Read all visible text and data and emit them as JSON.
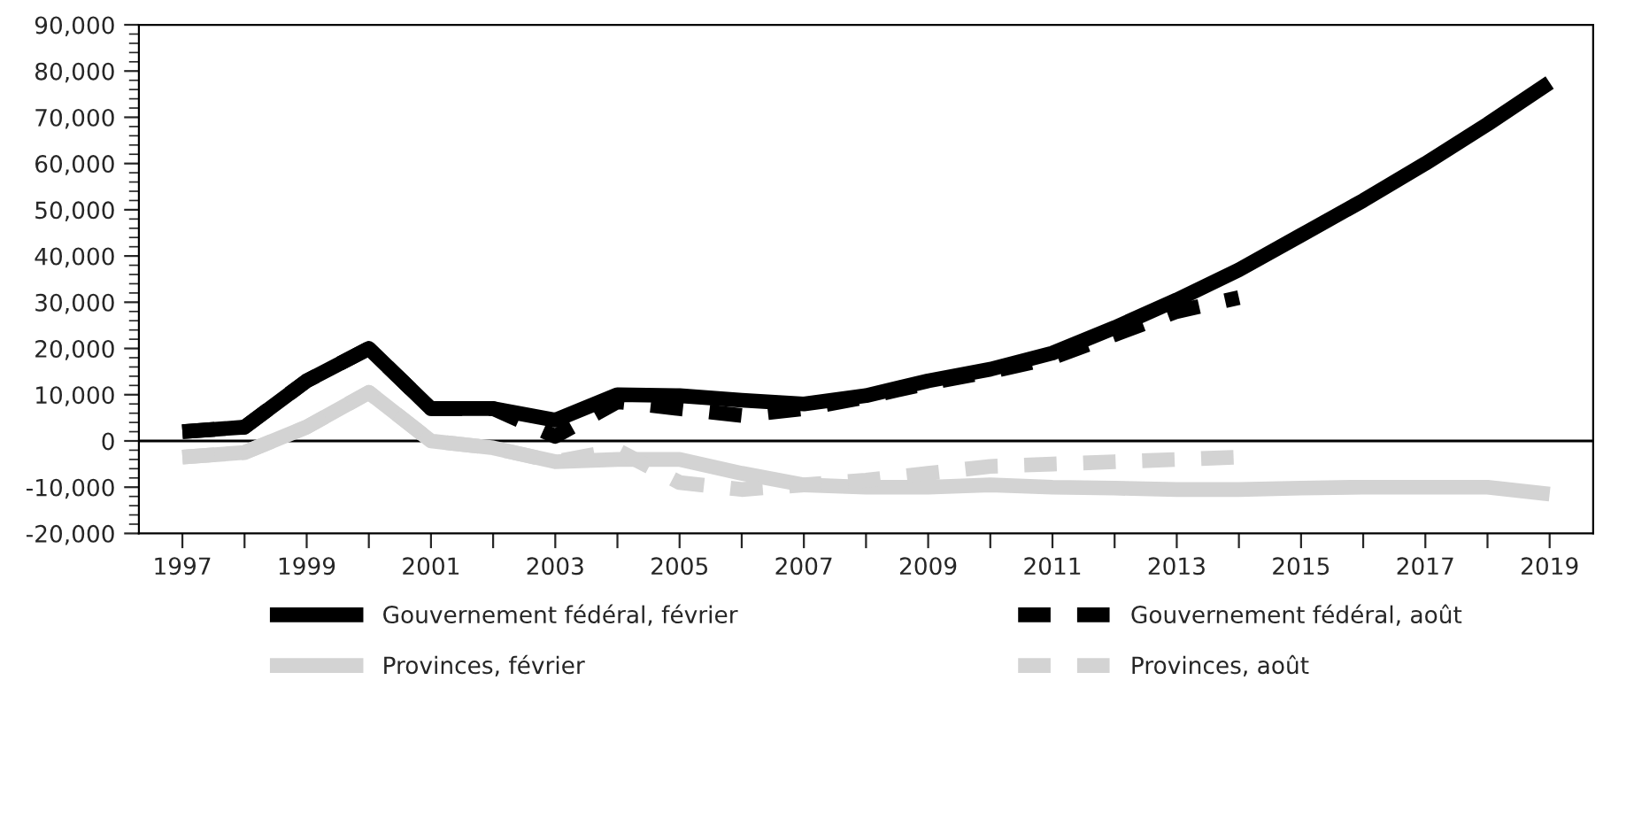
{
  "chart_data": {
    "type": "line",
    "x": [
      1997,
      1998,
      1999,
      2000,
      2001,
      2002,
      2003,
      2004,
      2005,
      2006,
      2007,
      2008,
      2009,
      2010,
      2011,
      2012,
      2013,
      2014,
      2015,
      2016,
      2017,
      2018,
      2019
    ],
    "series": [
      {
        "name": "Gouvernement fédéral, février",
        "color": "#000000",
        "line_style": "solid",
        "values": [
          2000,
          3000,
          13000,
          20000,
          7000,
          7000,
          4500,
          10000,
          9800,
          8800,
          8000,
          9800,
          13000,
          15500,
          19000,
          24500,
          30500,
          37000,
          44500,
          52000,
          60000,
          68500,
          77500
        ]
      },
      {
        "name": "Gouvernement fédéral, août",
        "color": "#000000",
        "line_style": "dashed",
        "values": [
          2000,
          3000,
          13000,
          20000,
          7000,
          7000,
          1000,
          8500,
          7000,
          5500,
          7000,
          9500,
          12500,
          15000,
          18000,
          23000,
          28000,
          31000,
          null,
          null,
          null,
          null,
          null
        ]
      },
      {
        "name": "Provinces, février",
        "color": "#d3d3d3",
        "line_style": "solid",
        "values": [
          -3500,
          -2500,
          3000,
          10500,
          0,
          -1500,
          -4500,
          -4000,
          -4000,
          -7000,
          -9500,
          -10000,
          -10000,
          -9500,
          -10000,
          -10200,
          -10500,
          -10500,
          -10200,
          -10000,
          -10000,
          -10000,
          -11500
        ]
      },
      {
        "name": "Provinces, août",
        "color": "#d3d3d3",
        "line_style": "dashed",
        "values": [
          -3500,
          -2500,
          3000,
          10500,
          0,
          -1500,
          -4500,
          -2000,
          -9000,
          -10500,
          -9500,
          -8500,
          -7000,
          -5500,
          -5000,
          -4500,
          -4000,
          -3500,
          null,
          null,
          null,
          null,
          null
        ]
      }
    ],
    "xlim": [
      1996.3,
      2019.7
    ],
    "xticks": [
      {
        "value": 1997,
        "label": "1997"
      },
      {
        "value": 1998,
        "label": null
      },
      {
        "value": 1999,
        "label": "1999"
      },
      {
        "value": 2000,
        "label": null
      },
      {
        "value": 2001,
        "label": "2001"
      },
      {
        "value": 2002,
        "label": null
      },
      {
        "value": 2003,
        "label": "2003"
      },
      {
        "value": 2004,
        "label": null
      },
      {
        "value": 2005,
        "label": "2005"
      },
      {
        "value": 2006,
        "label": null
      },
      {
        "value": 2007,
        "label": "2007"
      },
      {
        "value": 2008,
        "label": null
      },
      {
        "value": 2009,
        "label": "2009"
      },
      {
        "value": 2010,
        "label": null
      },
      {
        "value": 2011,
        "label": "2011"
      },
      {
        "value": 2012,
        "label": null
      },
      {
        "value": 2013,
        "label": "2013"
      },
      {
        "value": 2014,
        "label": null
      },
      {
        "value": 2015,
        "label": "2015"
      },
      {
        "value": 2016,
        "label": null
      },
      {
        "value": 2017,
        "label": "2017"
      },
      {
        "value": 2018,
        "label": null
      },
      {
        "value": 2019,
        "label": "2019"
      }
    ],
    "ylim": [
      -20000,
      90000
    ],
    "yticks": [
      {
        "value": -20000,
        "label": "-20,000"
      },
      {
        "value": -10000,
        "label": "-10,000"
      },
      {
        "value": 0,
        "label": "0"
      },
      {
        "value": 10000,
        "label": "10,000"
      },
      {
        "value": 20000,
        "label": "20,000"
      },
      {
        "value": 30000,
        "label": "30,000"
      },
      {
        "value": 40000,
        "label": "40,000"
      },
      {
        "value": 50000,
        "label": "50,000"
      },
      {
        "value": 60000,
        "label": "60,000"
      },
      {
        "value": 70000,
        "label": "70,000"
      },
      {
        "value": 80000,
        "label": "80,000"
      },
      {
        "value": 90000,
        "label": "90,000"
      }
    ],
    "ref_lines": [
      {
        "axis": "y",
        "value": 0,
        "color": "#000000",
        "line_style": "solid"
      }
    ],
    "grid": false,
    "legend": "bottom",
    "marker": "none"
  }
}
